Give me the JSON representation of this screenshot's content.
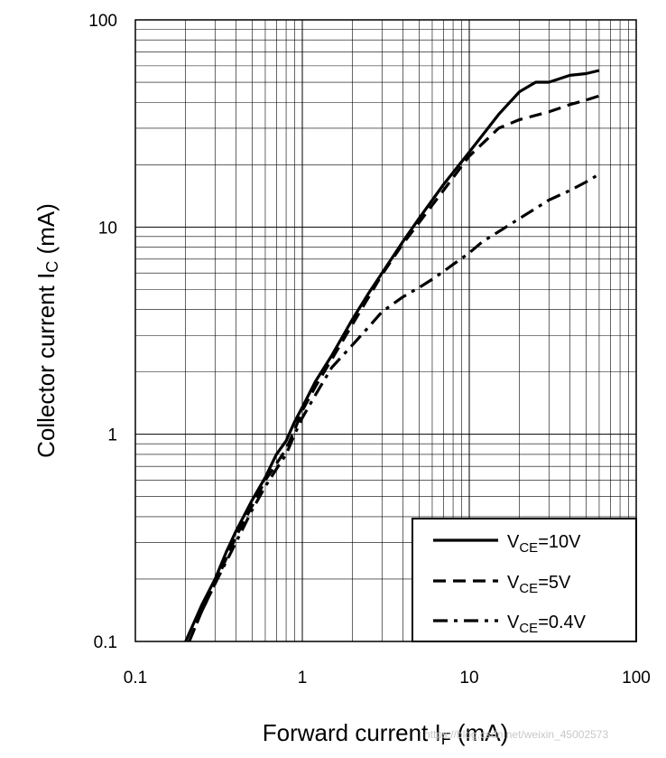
{
  "chart_data": {
    "type": "line",
    "x_scale": "log",
    "y_scale": "log",
    "xlim": [
      0.1,
      100
    ],
    "ylim": [
      0.1,
      100
    ],
    "grid": true,
    "legend_position": "bottom-right",
    "x_ticks": [
      "0.1",
      "1",
      "10",
      "100"
    ],
    "y_ticks": [
      "0.1",
      "1",
      "10",
      "100"
    ],
    "xlabel": {
      "main": "Forward current  I",
      "sub": "F",
      "unit": " (mA)"
    },
    "ylabel": {
      "main": "Collector current  I",
      "sub": "C",
      "unit": " (mA)"
    },
    "series": [
      {
        "name": {
          "main": "V",
          "sub": "CE",
          "rest": "=10V"
        },
        "style": "solid",
        "x": [
          0.2,
          0.25,
          0.3,
          0.35,
          0.4,
          0.5,
          0.6,
          0.7,
          0.8,
          0.9,
          1.0,
          1.2,
          1.5,
          2.0,
          2.5,
          3.0,
          4.0,
          5.0,
          7.0,
          10.0,
          15.0,
          20.0,
          25.0,
          30.0,
          40.0,
          50.0,
          60.0
        ],
        "y": [
          0.1,
          0.15,
          0.2,
          0.27,
          0.34,
          0.48,
          0.62,
          0.8,
          0.93,
          1.15,
          1.35,
          1.8,
          2.4,
          3.6,
          4.8,
          6.0,
          8.5,
          11.0,
          16.0,
          23.0,
          35.0,
          45.0,
          50.0,
          50.0,
          54.0,
          55.0,
          57.0
        ]
      },
      {
        "name": {
          "main": "V",
          "sub": "CE",
          "rest": "=5V"
        },
        "style": "dashed",
        "x": [
          0.21,
          0.25,
          0.3,
          0.4,
          0.5,
          0.6,
          0.7,
          0.8,
          0.9,
          1.0,
          1.2,
          1.5,
          2.0,
          2.5,
          3.0,
          4.0,
          5.0,
          7.0,
          10.0,
          15.0,
          20.0,
          30.0,
          40.0,
          50.0,
          60.0
        ],
        "y": [
          0.1,
          0.14,
          0.19,
          0.32,
          0.45,
          0.6,
          0.72,
          0.85,
          1.05,
          1.3,
          1.7,
          2.3,
          3.4,
          4.6,
          5.9,
          8.3,
          10.5,
          15.0,
          22.0,
          30.0,
          33.0,
          36.0,
          39.0,
          41.0,
          43.0
        ]
      },
      {
        "name": {
          "main": "V",
          "sub": "CE",
          "rest": "=0.4V"
        },
        "style": "dash-dot",
        "x": [
          0.21,
          0.25,
          0.3,
          0.4,
          0.5,
          0.6,
          0.7,
          0.8,
          0.9,
          1.0,
          1.2,
          1.5,
          2.0,
          2.5,
          3.0,
          4.0,
          5.0,
          6.0,
          7.0,
          8.0,
          10.0,
          12.0,
          15.0,
          20.0,
          30.0,
          40.0,
          50.0,
          60.0
        ],
        "y": [
          0.1,
          0.14,
          0.19,
          0.3,
          0.43,
          0.56,
          0.68,
          0.8,
          1.0,
          1.2,
          1.55,
          2.1,
          2.7,
          3.3,
          3.9,
          4.6,
          5.1,
          5.6,
          6.1,
          6.6,
          7.5,
          8.5,
          9.5,
          11.0,
          13.5,
          15.0,
          16.5,
          18.0
        ]
      }
    ]
  },
  "watermark": "https://blog.csdn.net/weixin_45002573"
}
